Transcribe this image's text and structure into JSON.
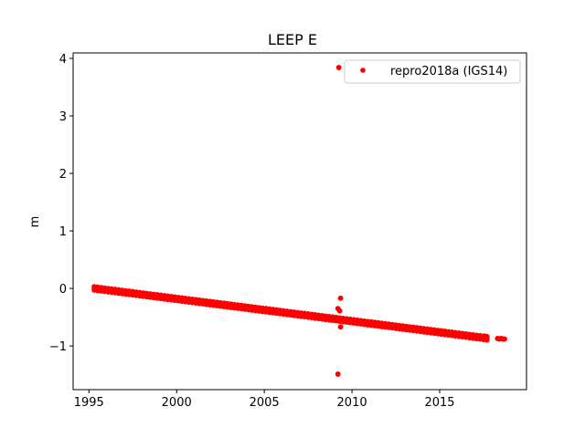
{
  "chart_data": {
    "type": "scatter",
    "title": "LEEP E",
    "xlabel": "",
    "ylabel": "m",
    "xlim": [
      1994.1,
      2019.95
    ],
    "ylim": [
      -1.76,
      4.095
    ],
    "xticks": [
      1995,
      2000,
      2005,
      2010,
      2015
    ],
    "xtick_labels": [
      "1995",
      "2000",
      "2005",
      "2010",
      "2015"
    ],
    "yticks": [
      -1,
      0,
      1,
      2,
      3,
      4
    ],
    "ytick_labels": [
      "−1",
      "0",
      "1",
      "2",
      "3",
      "4"
    ],
    "grid": false,
    "legend": {
      "position": "top-right",
      "entries": [
        "repro2018a (IGS14)"
      ]
    },
    "series": [
      {
        "name": "repro2018a (IGS14)",
        "color": "#ff0000",
        "trend": {
          "x0": 1995.3,
          "dx": 0.2,
          "y": [
            0,
            -0.008,
            -0.015,
            -0.023,
            -0.031,
            -0.039,
            -0.046,
            -0.054,
            -0.062,
            -0.07,
            -0.077,
            -0.085,
            -0.093,
            -0.101,
            -0.108,
            -0.116,
            -0.124,
            -0.132,
            -0.139,
            -0.147,
            -0.155,
            -0.163,
            -0.17,
            -0.178,
            -0.186,
            -0.194,
            -0.201,
            -0.209,
            -0.217,
            -0.224,
            -0.232,
            -0.24,
            -0.248,
            -0.255,
            -0.263,
            -0.271,
            -0.279,
            -0.286,
            -0.294,
            -0.302,
            -0.31,
            -0.317,
            -0.325,
            -0.333,
            -0.341,
            -0.348,
            -0.356,
            -0.364,
            -0.372,
            -0.379,
            -0.387,
            -0.395,
            -0.402,
            -0.41,
            -0.418,
            -0.426,
            -0.433,
            -0.441,
            -0.449,
            -0.457,
            -0.464,
            -0.472,
            -0.48,
            -0.488,
            -0.495,
            -0.503,
            -0.511,
            -0.519,
            -0.526,
            -0.534,
            -0.542,
            -0.55,
            -0.557,
            -0.565,
            -0.573,
            -0.581,
            -0.588,
            -0.596,
            -0.604,
            -0.611,
            -0.619,
            -0.627,
            -0.635,
            -0.642,
            -0.65,
            -0.658,
            -0.666,
            -0.673,
            -0.681,
            -0.689,
            -0.697,
            -0.704,
            -0.712,
            -0.72,
            -0.728,
            -0.735,
            -0.743,
            -0.751,
            -0.759,
            -0.766,
            -0.774,
            -0.782,
            -0.789,
            -0.797,
            -0.805,
            -0.813,
            -0.82,
            -0.828,
            -0.836,
            -0.844,
            -0.851,
            -0.859,
            -0.867
          ]
        },
        "extra_points": [
          [
            2017.6,
            -0.83
          ],
          [
            2018.3,
            -0.87
          ],
          [
            2018.4,
            -0.88
          ],
          [
            2018.5,
            -0.87
          ],
          [
            2018.6,
            -0.88
          ],
          [
            2018.7,
            -0.88
          ],
          [
            2009.25,
            3.84
          ],
          [
            2009.35,
            -0.17
          ],
          [
            2009.2,
            -0.35
          ],
          [
            2009.3,
            -0.39
          ],
          [
            2009.35,
            -0.67
          ],
          [
            2009.2,
            -1.49
          ]
        ]
      }
    ]
  }
}
